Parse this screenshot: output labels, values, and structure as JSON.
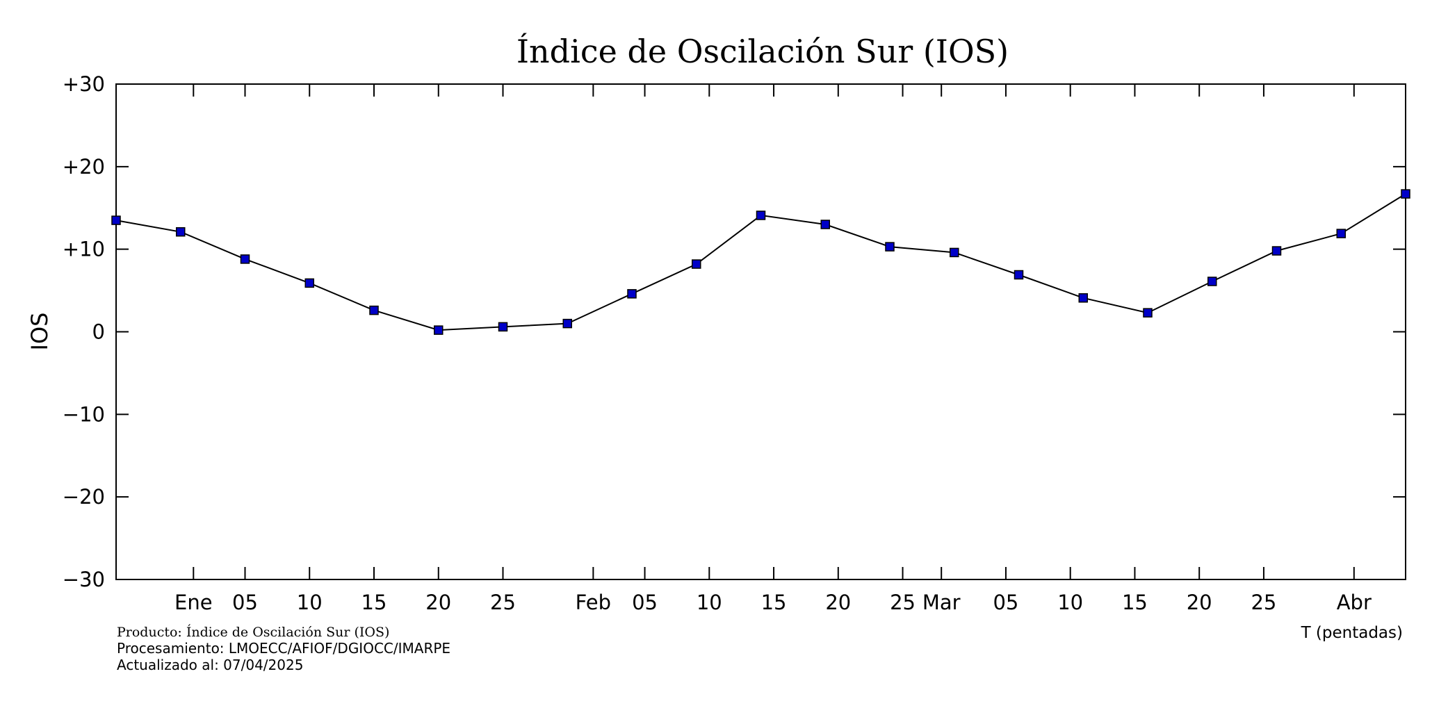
{
  "chart_data": {
    "type": "line",
    "title": "Índice de Oscilación Sur (IOS)",
    "ylabel": "IOS",
    "xlabel": "T (pentadas)",
    "ylim": [
      -30,
      30
    ],
    "y_ticks": [
      30,
      20,
      10,
      0,
      -10,
      -20,
      -30
    ],
    "y_tick_labels": [
      "+30",
      "+20",
      "+10",
      "0",
      "−10",
      "−20",
      "−30"
    ],
    "x_range": [
      0,
      20
    ],
    "x_tick_labels": [
      {
        "x": 1.2,
        "label": "Ene"
      },
      {
        "x": 2.0,
        "label": "05"
      },
      {
        "x": 3.0,
        "label": "10"
      },
      {
        "x": 4.0,
        "label": "15"
      },
      {
        "x": 5.0,
        "label": "20"
      },
      {
        "x": 6.0,
        "label": "25"
      },
      {
        "x": 7.4,
        "label": "Feb"
      },
      {
        "x": 8.2,
        "label": "05"
      },
      {
        "x": 9.2,
        "label": "10"
      },
      {
        "x": 10.2,
        "label": "15"
      },
      {
        "x": 11.2,
        "label": "20"
      },
      {
        "x": 12.2,
        "label": "25"
      },
      {
        "x": 12.8,
        "label": "Mar"
      },
      {
        "x": 13.8,
        "label": "05"
      },
      {
        "x": 14.8,
        "label": "10"
      },
      {
        "x": 15.8,
        "label": "15"
      },
      {
        "x": 16.8,
        "label": "20"
      },
      {
        "x": 17.8,
        "label": "25"
      },
      {
        "x": 19.2,
        "label": "Abr"
      }
    ],
    "grid": false,
    "series": [
      {
        "color": "#0000c8",
        "x": [
          0,
          1,
          2,
          3,
          4,
          5,
          6,
          7,
          8,
          9,
          10,
          11,
          12,
          13,
          14,
          15,
          16,
          17,
          18,
          19,
          20
        ],
        "values": [
          13.5,
          12.1,
          8.8,
          5.9,
          2.6,
          0.2,
          0.6,
          1.0,
          4.6,
          8.2,
          14.1,
          13.0,
          10.3,
          9.6,
          6.9,
          4.1,
          2.3,
          6.1,
          9.8,
          11.9,
          16.7
        ]
      }
    ]
  },
  "footer": {
    "producto": "Producto: Índice de Oscilación Sur (IOS)",
    "procesamiento": "Procesamiento: LMOECC/AFIOF/DGIOCC/IMARPE",
    "actualizado": "Actualizado al: 07/04/2025"
  }
}
